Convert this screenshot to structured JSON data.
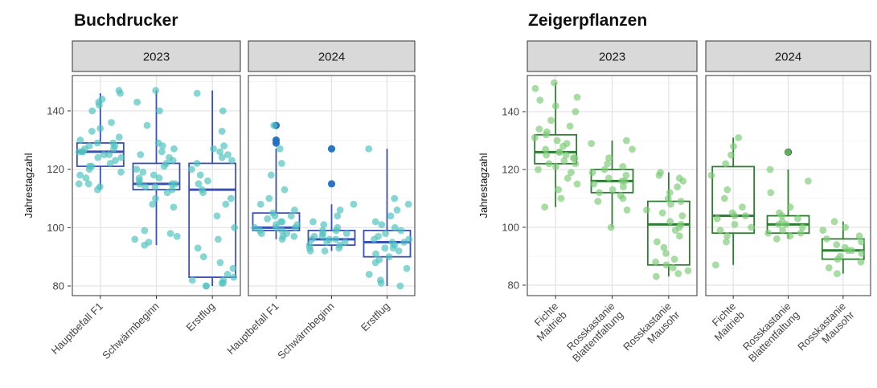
{
  "chart_data": [
    {
      "type": "box",
      "title": "Buchdrucker",
      "ylabel": "Jahrestagzahl",
      "xlabel": "",
      "ylim": [
        78,
        150
      ],
      "yticks": [
        80,
        100,
        120,
        140
      ],
      "grid": true,
      "colors": {
        "box": "#3a50b4",
        "point": "#4fc3c0",
        "outlier": "#1f6fc2"
      },
      "panels": [
        {
          "label": "2023",
          "categories": [
            "Hauptbefall F1",
            "Schwärmbeginn",
            "Erstflug"
          ],
          "boxes": [
            {
              "category": "Hauptbefall F1",
              "low": 113,
              "q1": 121,
              "median": 126,
              "q3": 129,
              "high": 146,
              "outliers": [],
              "points": [
                113,
                114,
                115,
                115,
                117,
                118,
                119,
                120,
                121,
                121,
                122,
                123,
                124,
                124,
                125,
                125,
                126,
                126,
                126,
                127,
                127,
                128,
                128,
                129,
                129,
                130,
                131,
                133,
                134,
                136,
                140,
                142,
                143,
                144,
                146,
                147
              ]
            },
            {
              "category": "Schwärmbeginn",
              "low": 94,
              "q1": 113,
              "median": 115,
              "q3": 122,
              "high": 147,
              "outliers": [],
              "points": [
                94,
                95,
                96,
                97,
                98,
                99,
                107,
                108,
                110,
                112,
                113,
                114,
                114,
                115,
                115,
                115,
                116,
                117,
                117,
                118,
                119,
                120,
                121,
                122,
                123,
                124,
                125,
                126,
                127,
                128,
                129,
                135,
                140,
                143,
                147
              ]
            },
            {
              "category": "Erstflug",
              "low": 80,
              "q1": 83,
              "median": 113,
              "q3": 122,
              "high": 147,
              "outliers": [],
              "points": [
                80,
                80,
                81,
                81,
                82,
                82,
                83,
                84,
                86,
                88,
                90,
                93,
                96,
                100,
                104,
                108,
                110,
                112,
                113,
                115,
                116,
                118,
                120,
                122,
                123,
                124,
                125,
                126,
                127,
                128,
                133,
                140,
                146
              ]
            }
          ]
        },
        {
          "label": "2024",
          "categories": [
            "Hauptbefall F1",
            "Schwärmbeginn",
            "Erstflug"
          ],
          "boxes": [
            {
              "category": "Hauptbefall F1",
              "low": 96,
              "q1": 99,
              "median": 100,
              "q3": 105,
              "high": 127,
              "outliers": [
                129,
                130,
                135
              ],
              "points": [
                96,
                97,
                97,
                98,
                98,
                99,
                99,
                100,
                100,
                100,
                101,
                101,
                102,
                102,
                103,
                104,
                104,
                105,
                106,
                108,
                110,
                113,
                118,
                122,
                127,
                135
              ]
            },
            {
              "category": "Schwärmbeginn",
              "low": 92,
              "q1": 94,
              "median": 96,
              "q3": 99,
              "high": 108,
              "outliers": [
                115,
                127
              ],
              "points": [
                92,
                92,
                93,
                93,
                94,
                94,
                95,
                95,
                96,
                96,
                96,
                97,
                97,
                98,
                98,
                99,
                99,
                100,
                101,
                102,
                104,
                106,
                108
              ]
            },
            {
              "category": "Erstflug",
              "low": 80,
              "q1": 90,
              "median": 95,
              "q3": 99,
              "high": 127,
              "outliers": [],
              "points": [
                80,
                81,
                82,
                84,
                86,
                88,
                89,
                90,
                91,
                92,
                93,
                93,
                94,
                95,
                95,
                96,
                96,
                97,
                98,
                99,
                100,
                101,
                102,
                104,
                106,
                108,
                110,
                127
              ]
            }
          ]
        }
      ]
    },
    {
      "type": "box",
      "title": "Zeigerpflanzen",
      "ylabel": "Jahrestagzahl",
      "xlabel": "",
      "ylim": [
        78,
        151
      ],
      "yticks": [
        80,
        100,
        120,
        140
      ],
      "grid": true,
      "colors": {
        "box": "#2e7d32",
        "point": "#7dcb78",
        "outlier": "#1b5e20"
      },
      "panels": [
        {
          "label": "2023",
          "categories": [
            "Fichte Maitrieb",
            "Rosskastanie Blattentfaltung",
            "Rosskastanie Mausohr"
          ],
          "boxes": [
            {
              "category": "Fichte Maitrieb",
              "low": 107,
              "q1": 122,
              "median": 126,
              "q3": 132,
              "high": 150,
              "outliers": [],
              "points": [
                107,
                110,
                113,
                115,
                117,
                119,
                120,
                121,
                122,
                122,
                123,
                124,
                124,
                125,
                125,
                126,
                126,
                127,
                128,
                129,
                130,
                131,
                132,
                133,
                134,
                135,
                137,
                140,
                142,
                144,
                145,
                148,
                150
              ]
            },
            {
              "category": "Rosskastanie Blattentfaltung",
              "low": 100,
              "q1": 112,
              "median": 116,
              "q3": 120,
              "high": 130,
              "outliers": [],
              "points": [
                100,
                106,
                109,
                110,
                111,
                112,
                113,
                114,
                115,
                116,
                116,
                117,
                118,
                119,
                120,
                121,
                122,
                124,
                127,
                129,
                130
              ]
            },
            {
              "category": "Rosskastanie Mausohr",
              "low": 83,
              "q1": 87,
              "median": 101,
              "q3": 109,
              "high": 119,
              "outliers": [],
              "points": [
                83,
                84,
                85,
                86,
                87,
                88,
                89,
                91,
                93,
                95,
                97,
                99,
                100,
                101,
                102,
                104,
                105,
                106,
                108,
                109,
                110,
                112,
                114,
                116,
                117,
                118,
                119
              ]
            }
          ]
        },
        {
          "label": "2024",
          "categories": [
            "Fichte Maitrieb",
            "Rosskastanie Blattentfaltung",
            "Rosskastanie Mausohr"
          ],
          "boxes": [
            {
              "category": "Fichte Maitrieb",
              "low": 87,
              "q1": 98,
              "median": 104,
              "q3": 121,
              "high": 131,
              "outliers": [],
              "points": [
                87,
                95,
                97,
                99,
                100,
                101,
                103,
                104,
                104,
                105,
                107,
                110,
                113,
                118,
                122,
                125,
                128,
                131
              ]
            },
            {
              "category": "Rosskastanie Blattentfaltung",
              "low": 96,
              "q1": 98,
              "median": 101,
              "q3": 104,
              "high": 120,
              "outliers": [
                126
              ],
              "points": [
                96,
                97,
                98,
                98,
                99,
                100,
                101,
                101,
                102,
                103,
                104,
                105,
                107,
                112,
                116,
                120,
                126
              ]
            },
            {
              "category": "Rosskastanie Mausohr",
              "low": 84,
              "q1": 89,
              "median": 92,
              "q3": 96,
              "high": 102,
              "outliers": [],
              "points": [
                84,
                86,
                88,
                89,
                90,
                91,
                92,
                92,
                93,
                94,
                95,
                96,
                97,
                99,
                100,
                102
              ]
            }
          ]
        }
      ]
    }
  ]
}
